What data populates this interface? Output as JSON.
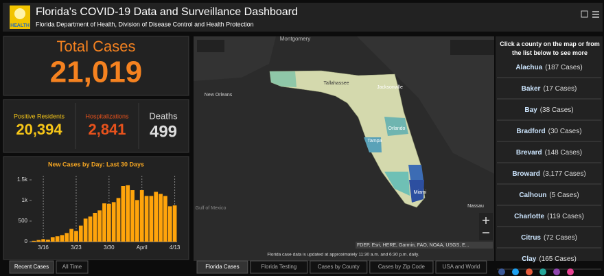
{
  "header": {
    "logo_text": "HEALTH",
    "title": "Florida's COVID-19 Data and Surveillance Dashboard",
    "subtitle": "Florida Department of Health, Division of Disease Control and Health Protection"
  },
  "total": {
    "label": "Total Cases",
    "value": "21,019"
  },
  "stats": [
    {
      "label": "Positive Residents",
      "value": "20,394"
    },
    {
      "label": "Hospitalizations",
      "value": "2,841"
    },
    {
      "label": "Deaths",
      "value": "499"
    }
  ],
  "chart_data": {
    "type": "bar",
    "title": "New Cases by Day: Last 30 Days",
    "categories": [
      null,
      null,
      "3/16",
      null,
      null,
      null,
      null,
      null,
      null,
      "3/23",
      null,
      null,
      null,
      null,
      null,
      null,
      "3/30",
      null,
      null,
      null,
      null,
      null,
      null,
      "April",
      null,
      null,
      null,
      null,
      null,
      null,
      "4/13"
    ],
    "values": [
      20,
      40,
      60,
      50,
      110,
      130,
      160,
      210,
      310,
      260,
      390,
      560,
      610,
      700,
      760,
      930,
      920,
      960,
      1060,
      1350,
      1370,
      1250,
      1010,
      1250,
      1110,
      1110,
      1210,
      1160,
      1110,
      860,
      880
    ],
    "color": "#ffa40b",
    "ylim": [
      0,
      1600
    ],
    "yticks": [
      0,
      500,
      {
        "value": 1000,
        "label": "1k"
      },
      {
        "value": 1500,
        "label": "1.5k"
      }
    ]
  },
  "chart_tabs": [
    "Recent Cases",
    "All Time"
  ],
  "map": {
    "labels": [
      "Montgomery",
      "New Orleans",
      "Tallahassee",
      "Jacksonville",
      "Orlando",
      "Tampa",
      "Miami",
      "Gulf of Mexico",
      "Nassau"
    ],
    "attribution": "FDEP, Esri, HERE, Garmin, FAO, NOAA, USGS, E...",
    "note": "Florida case data is updated at approximately 11:30 a.m. and 6:30 p.m. daily."
  },
  "map_tabs": [
    "Florida Cases",
    "Florida Testing",
    "Cases by County",
    "Cases by Zip Code",
    "USA and World"
  ],
  "county_list": {
    "prompt": "Click a county on the map or from the list below to see more",
    "items": [
      {
        "name": "Alachua",
        "cases": "(187 Cases)"
      },
      {
        "name": "Baker",
        "cases": "(17 Cases)"
      },
      {
        "name": "Bay",
        "cases": "(38 Cases)"
      },
      {
        "name": "Bradford",
        "cases": "(30 Cases)"
      },
      {
        "name": "Brevard",
        "cases": "(148 Cases)"
      },
      {
        "name": "Broward",
        "cases": "(3,177 Cases)"
      },
      {
        "name": "Calhoun",
        "cases": "(5 Cases)"
      },
      {
        "name": "Charlotte",
        "cases": "(119 Cases)"
      },
      {
        "name": "Citrus",
        "cases": "(72 Cases)"
      },
      {
        "name": "Clay",
        "cases": "(165 Cases)"
      }
    ]
  }
}
